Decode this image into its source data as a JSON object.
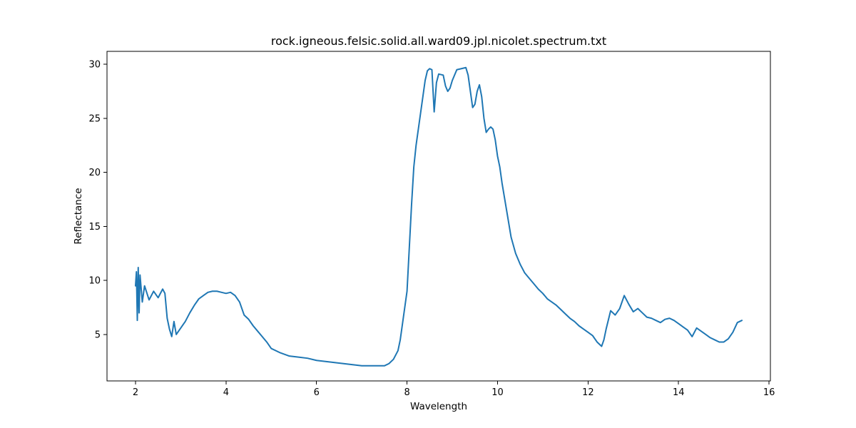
{
  "chart_data": {
    "type": "line",
    "title": "rock.igneous.felsic.solid.all.ward09.jpl.nicolet.spectrum.txt",
    "xlabel": "Wavelength",
    "ylabel": "Reflectance",
    "xlim": [
      1.37,
      16.03
    ],
    "ylim": [
      0.7,
      31.2
    ],
    "xticks": [
      2,
      4,
      6,
      8,
      10,
      12,
      14,
      16
    ],
    "yticks": [
      5,
      10,
      15,
      20,
      25,
      30
    ],
    "grid": false,
    "legend": "none",
    "colors": {
      "line": "#1f77b4",
      "axes": "#000000",
      "background": "#ffffff"
    },
    "series": [
      {
        "x": [
          2.0,
          2.02,
          2.04,
          2.06,
          2.08,
          2.1,
          2.15,
          2.2,
          2.3,
          2.4,
          2.5,
          2.6,
          2.65,
          2.7,
          2.75,
          2.8,
          2.85,
          2.9,
          3.0,
          3.1,
          3.2,
          3.3,
          3.4,
          3.5,
          3.6,
          3.7,
          3.8,
          3.9,
          4.0,
          4.1,
          4.2,
          4.3,
          4.4,
          4.5,
          4.6,
          4.7,
          4.8,
          4.9,
          5.0,
          5.2,
          5.4,
          5.6,
          5.8,
          6.0,
          6.2,
          6.4,
          6.6,
          6.8,
          7.0,
          7.2,
          7.4,
          7.5,
          7.6,
          7.7,
          7.8,
          7.85,
          7.9,
          8.0,
          8.05,
          8.1,
          8.15,
          8.2,
          8.3,
          8.4,
          8.45,
          8.5,
          8.55,
          8.6,
          8.65,
          8.7,
          8.8,
          8.85,
          8.9,
          8.95,
          9.0,
          9.1,
          9.2,
          9.3,
          9.35,
          9.4,
          9.45,
          9.5,
          9.55,
          9.6,
          9.65,
          9.7,
          9.75,
          9.8,
          9.85,
          9.9,
          9.95,
          10.0,
          10.05,
          10.1,
          10.2,
          10.3,
          10.4,
          10.5,
          10.6,
          10.7,
          10.8,
          10.9,
          11.0,
          11.1,
          11.2,
          11.3,
          11.4,
          11.5,
          11.6,
          11.7,
          11.8,
          11.9,
          12.0,
          12.1,
          12.2,
          12.3,
          12.35,
          12.4,
          12.5,
          12.6,
          12.7,
          12.8,
          12.9,
          13.0,
          13.1,
          13.2,
          13.3,
          13.4,
          13.5,
          13.6,
          13.7,
          13.8,
          13.9,
          14.0,
          14.1,
          14.2,
          14.3,
          14.4,
          14.5,
          14.6,
          14.7,
          14.8,
          14.9,
          15.0,
          15.1,
          15.2,
          15.3,
          15.4
        ],
        "y": [
          9.5,
          10.8,
          6.3,
          11.2,
          7.0,
          10.5,
          8.0,
          9.5,
          8.2,
          9.0,
          8.4,
          9.2,
          8.8,
          6.5,
          5.5,
          4.8,
          6.2,
          5.0,
          5.6,
          6.2,
          7.0,
          7.7,
          8.3,
          8.6,
          8.9,
          9.0,
          9.0,
          8.9,
          8.8,
          8.9,
          8.6,
          8.0,
          6.8,
          6.4,
          5.8,
          5.3,
          4.8,
          4.3,
          3.7,
          3.3,
          3.0,
          2.9,
          2.8,
          2.6,
          2.5,
          2.4,
          2.3,
          2.2,
          2.1,
          2.1,
          2.1,
          2.1,
          2.3,
          2.7,
          3.5,
          4.5,
          6.0,
          9.0,
          13.0,
          17.0,
          20.5,
          22.5,
          25.5,
          28.5,
          29.4,
          29.6,
          29.5,
          25.6,
          28.3,
          29.1,
          29.0,
          28.0,
          27.5,
          27.8,
          28.5,
          29.5,
          29.6,
          29.7,
          29.0,
          27.5,
          26.0,
          26.3,
          27.5,
          28.1,
          27.0,
          25.0,
          23.7,
          24.0,
          24.2,
          24.0,
          23.0,
          21.5,
          20.5,
          19.0,
          16.5,
          14.0,
          12.5,
          11.5,
          10.7,
          10.2,
          9.7,
          9.2,
          8.8,
          8.3,
          8.0,
          7.7,
          7.3,
          6.9,
          6.5,
          6.2,
          5.8,
          5.5,
          5.2,
          4.9,
          4.3,
          3.9,
          4.5,
          5.5,
          7.2,
          6.8,
          7.4,
          8.6,
          7.8,
          7.1,
          7.4,
          7.0,
          6.6,
          6.5,
          6.3,
          6.1,
          6.4,
          6.5,
          6.3,
          6.0,
          5.7,
          5.4,
          4.8,
          5.6,
          5.3,
          5.0,
          4.7,
          4.5,
          4.3,
          4.3,
          4.6,
          5.2,
          6.1,
          6.3
        ]
      }
    ]
  }
}
